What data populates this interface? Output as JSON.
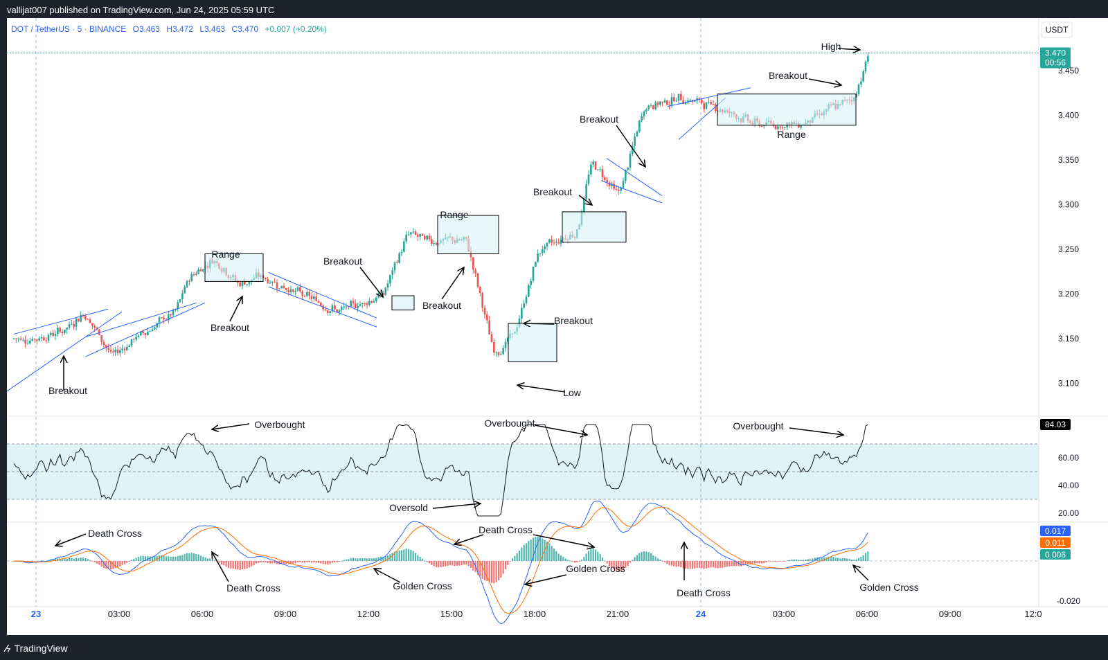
{
  "publisher": "vallijat007 published on TradingView.com, Jun 24, 2025 05:59 UTC",
  "footer_brand": "TradingView",
  "footer_logo_icon": "tradingview-logo-icon",
  "header": {
    "symbol": "DOT / TetherUS · 5 · BINANCE",
    "open": "O3.463",
    "high": "H3.472",
    "low": "L3.463",
    "close": "C3.470",
    "change": "+0.007 (+0.20%)"
  },
  "currency": "USDT",
  "colors": {
    "up": "#26a69a",
    "down": "#ef5350",
    "trendline": "#2962ff",
    "range_fill": "#d6f1f6",
    "rsi_band": "#e0f3f7",
    "macd_line": "#2962ff",
    "signal_line": "#ff6d00",
    "accent": "#2962ff"
  },
  "chart_data": [
    {
      "type": "candlestick",
      "name": "price",
      "ylim": [
        3.07,
        3.475
      ],
      "y_ticks": [
        "3.450",
        "3.400",
        "3.350",
        "3.300",
        "3.250",
        "3.200",
        "3.150",
        "3.100"
      ],
      "x_ticks": [
        "23",
        "03:00",
        "06:00",
        "09:00",
        "12:00",
        "15:00",
        "18:00",
        "21:00",
        "24",
        "03:00",
        "06:00",
        "09:00",
        "12:0"
      ],
      "last_price": "3.470",
      "countdown": "00:56",
      "path_hours": [
        0,
        1,
        1.7,
        2.7,
        3.5,
        5,
        5.5,
        6.4,
        7.3,
        8,
        9.5,
        10.9,
        12.5,
        13.4,
        14,
        15.5,
        16.5,
        17.3,
        18.1,
        19.5,
        20,
        21,
        21.9,
        23.2,
        24.5,
        26,
        27.5,
        29.5,
        30
      ],
      "path_prices": [
        3.15,
        3.16,
        3.18,
        3.13,
        3.15,
        3.18,
        3.22,
        3.24,
        3.21,
        3.22,
        3.2,
        3.18,
        3.2,
        3.27,
        3.26,
        3.26,
        3.13,
        3.16,
        3.25,
        3.27,
        3.35,
        3.31,
        3.41,
        3.42,
        3.41,
        3.39,
        3.39,
        3.42,
        3.47
      ],
      "annotations": [
        {
          "label": "Breakout",
          "kind": "arrow"
        },
        {
          "label": "Range",
          "kind": "box"
        },
        {
          "label": "Breakout",
          "kind": "arrow"
        },
        {
          "label": "Breakout",
          "kind": "arrow"
        },
        {
          "label": "Range",
          "kind": "box"
        },
        {
          "label": "Breakout",
          "kind": "arrow"
        },
        {
          "label": "Breakout",
          "kind": "arrow"
        },
        {
          "label": "Low",
          "kind": "arrow"
        },
        {
          "label": "Breakout",
          "kind": "arrow"
        },
        {
          "label": "Breakout",
          "kind": "arrow"
        },
        {
          "label": "Breakout",
          "kind": "arrow"
        },
        {
          "label": "Range",
          "kind": "box"
        },
        {
          "label": "High",
          "kind": "arrow"
        }
      ]
    },
    {
      "type": "line",
      "name": "RSI",
      "ylim": [
        15,
        90
      ],
      "y_ticks": [
        "60.00",
        "40.00",
        "20.00"
      ],
      "bands": [
        30,
        50,
        70
      ],
      "last_value": "84.03",
      "annotations": [
        {
          "label": "Overbought"
        },
        {
          "label": "Overbought"
        },
        {
          "label": "Overbought"
        },
        {
          "label": "Oversold"
        }
      ]
    },
    {
      "type": "line+histogram",
      "name": "MACD",
      "y_ticks": [
        "-0.020"
      ],
      "last_values": {
        "macd": "0.017",
        "signal": "0.011",
        "histogram": "0.006"
      },
      "annotations": [
        {
          "label": "Death Cross"
        },
        {
          "label": "Death Cross"
        },
        {
          "label": "Golden Cross"
        },
        {
          "label": "Death Cross"
        },
        {
          "label": "Golden Cross"
        },
        {
          "label": "Death Cross"
        },
        {
          "label": "Death Cross"
        },
        {
          "label": "Golden Cross"
        }
      ]
    }
  ]
}
